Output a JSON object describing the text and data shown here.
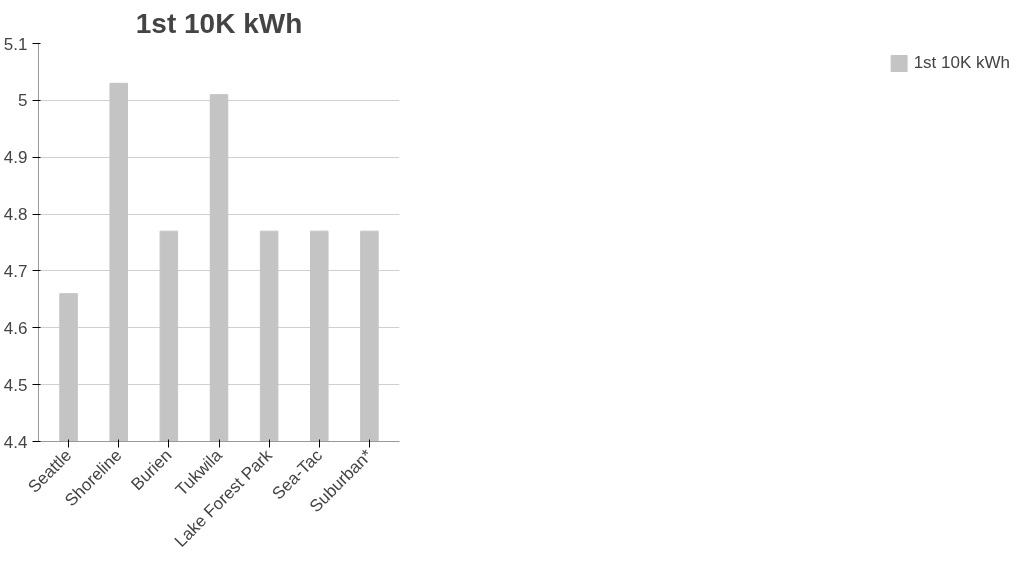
{
  "chart_data": {
    "type": "bar",
    "title": "1st 10K kWh",
    "categories": [
      "Seattle",
      "Shoreline",
      "Burien",
      "Tukwila",
      "Lake Forest Park",
      "Sea-Tac",
      "Suburban*"
    ],
    "series": [
      {
        "name": "1st 10K kWh",
        "color": "#c4c4c4",
        "values": [
          4.66,
          5.03,
          4.77,
          5.01,
          4.77,
          4.77,
          4.77
        ]
      }
    ],
    "ylim": [
      4.4,
      5.1
    ],
    "yticks": [
      4.4,
      4.5,
      4.6,
      4.7,
      4.8,
      4.9,
      5,
      5.1
    ],
    "grid": "y",
    "legend": "right"
  }
}
